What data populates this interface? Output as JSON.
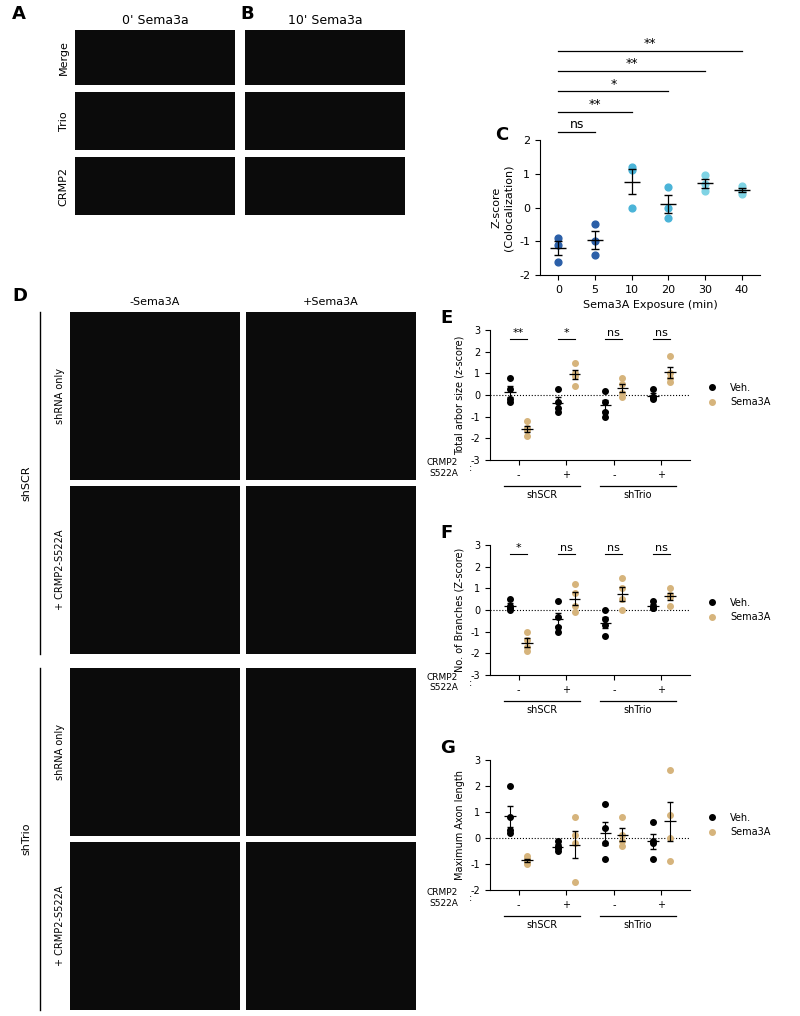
{
  "panel_labels": [
    "A",
    "B",
    "C",
    "D",
    "E",
    "F",
    "G"
  ],
  "micrographs": {
    "A": {
      "title": "0' Sema3a",
      "rows": [
        "Merge",
        "Trio",
        "CRMP2"
      ]
    },
    "B": {
      "title": "10' Sema3a"
    },
    "D": {
      "columns": [
        "-Sema3A",
        "+Sema3A"
      ],
      "groups": [
        {
          "name": "shSCR",
          "rows": [
            "shRNA only",
            "+ CRMP2-S522A"
          ]
        },
        {
          "name": "shTrio",
          "rows": [
            "shRNA only",
            "+ CRMP2-S522A"
          ]
        }
      ]
    }
  },
  "chart_data": [
    {
      "type": "scatter",
      "xlabel": "Sema3A Exposure (min)",
      "ylabel": "Z-score\n(Colocalization)",
      "categories": [
        "0",
        "5",
        "10",
        "20",
        "30",
        "40"
      ],
      "values": [
        [
          -0.9,
          -1.1,
          -1.6
        ],
        [
          -0.5,
          -1.0,
          -1.4
        ],
        [
          1.2,
          1.1,
          0.0
        ],
        [
          0.6,
          0.0,
          -0.3
        ],
        [
          0.95,
          0.7,
          0.5
        ],
        [
          0.65,
          0.5,
          0.4
        ]
      ],
      "mean": [
        -1.2,
        -0.97,
        0.77,
        0.1,
        0.72,
        0.52
      ],
      "sem": [
        0.21,
        0.26,
        0.38,
        0.26,
        0.13,
        0.07
      ],
      "colors": [
        "#2b5fa8",
        "#2b5fa8",
        "#4bb4d8",
        "#4bb4d8",
        "#7fd3e4",
        "#7fd3e4"
      ],
      "ylim": [
        -2,
        2
      ],
      "yticks": [
        -2,
        -1,
        0,
        1,
        2
      ],
      "significance": [
        {
          "from": "0",
          "to": "5",
          "label": "ns"
        },
        {
          "from": "0",
          "to": "10",
          "label": "**"
        },
        {
          "from": "0",
          "to": "20",
          "label": "*"
        },
        {
          "from": "0",
          "to": "30",
          "label": "**"
        },
        {
          "from": "0",
          "to": "40",
          "label": "**"
        }
      ]
    },
    {
      "type": "scatter",
      "ylabel": "Total arbor size (z-score)",
      "categories": [
        "-",
        "+",
        "-",
        "+"
      ],
      "groups": [
        "shSCR",
        "shTrio"
      ],
      "row_label": "CRMP2\nS522A",
      "row_separator": ":",
      "series": [
        {
          "name": "Veh.",
          "color": "#000000",
          "values": [
            [
              0.8,
              0.3,
              -0.2,
              -0.3
            ],
            [
              0.3,
              -0.3,
              -0.6,
              -0.8
            ],
            [
              0.2,
              -0.3,
              -0.8,
              -1.0
            ],
            [
              0.3,
              -0.1,
              -0.2,
              -0.1
            ]
          ],
          "mean": [
            0.15,
            -0.35,
            -0.48,
            -0.03
          ],
          "sem": [
            0.25,
            0.24,
            0.27,
            0.11
          ]
        },
        {
          "name": "Sema3A",
          "color": "#d6b47c",
          "values": [
            [
              -1.2,
              -1.5,
              -1.6,
              -1.9
            ],
            [
              1.5,
              1.0,
              0.9,
              0.4
            ],
            [
              0.8,
              0.5,
              0.1,
              -0.1
            ],
            [
              1.8,
              1.0,
              0.8,
              0.6
            ]
          ],
          "mean": [
            -1.55,
            0.95,
            0.33,
            1.05
          ],
          "sem": [
            0.14,
            0.22,
            0.2,
            0.26
          ]
        }
      ],
      "significance": [
        "**",
        "*",
        "ns",
        "ns"
      ],
      "reference_line": 0,
      "ylim": [
        -3,
        3
      ],
      "yticks": [
        -3,
        -2,
        -1,
        0,
        1,
        2,
        3
      ],
      "legend": "center left"
    },
    {
      "type": "scatter",
      "ylabel": "No. of Branches (Z-score)",
      "categories": [
        "-",
        "+",
        "-",
        "+"
      ],
      "groups": [
        "shSCR",
        "shTrio"
      ],
      "row_label": "CRMP2\nS522A",
      "row_separator": ":",
      "series": [
        {
          "name": "Veh.",
          "color": "#000000",
          "values": [
            [
              0.5,
              0.2,
              0.0,
              0.1
            ],
            [
              0.4,
              -0.3,
              -0.8,
              -1.0
            ],
            [
              0.0,
              -0.4,
              -0.7,
              -1.2
            ],
            [
              0.4,
              0.2,
              0.1,
              0.1
            ]
          ],
          "mean": [
            0.2,
            -0.43,
            -0.58,
            0.2
          ],
          "sem": [
            0.11,
            0.31,
            0.25,
            0.07
          ]
        },
        {
          "name": "Sema3A",
          "color": "#d6b47c",
          "values": [
            [
              -1.0,
              -1.4,
              -1.9,
              -1.7
            ],
            [
              1.2,
              0.8,
              0.2,
              -0.1
            ],
            [
              1.5,
              1.0,
              0.5,
              0.0
            ],
            [
              1.0,
              0.7,
              0.6,
              0.2
            ]
          ],
          "mean": [
            -1.5,
            0.53,
            0.75,
            0.63
          ],
          "sem": [
            0.2,
            0.29,
            0.32,
            0.17
          ]
        }
      ],
      "significance": [
        "*",
        "ns",
        "ns",
        "ns"
      ],
      "reference_line": 0,
      "ylim": [
        -3,
        3
      ],
      "yticks": [
        -3,
        -2,
        -1,
        0,
        1,
        2,
        3
      ],
      "legend": "center left"
    },
    {
      "type": "scatter",
      "ylabel": "Maximum Axon length",
      "categories": [
        "-",
        "+",
        "-",
        "+"
      ],
      "groups": [
        "shSCR",
        "shTrio"
      ],
      "row_label": "CRMP2\nS522A",
      "row_separator": ":",
      "series": [
        {
          "name": "Veh.",
          "color": "#000000",
          "values": [
            [
              2.0,
              0.8,
              0.3,
              0.2
            ],
            [
              -0.1,
              -0.3,
              -0.4,
              -0.5
            ],
            [
              1.3,
              0.4,
              -0.2,
              -0.8
            ],
            [
              0.6,
              -0.1,
              -0.2,
              -0.8
            ]
          ],
          "mean": [
            0.83,
            -0.33,
            0.18,
            -0.13
          ],
          "sem": [
            0.41,
            0.09,
            0.45,
            0.29
          ]
        },
        {
          "name": "Sema3A",
          "color": "#d6b47c",
          "values": [
            [
              -0.7,
              -0.8,
              -0.9,
              -1.0
            ],
            [
              0.8,
              0.1,
              -0.2,
              -1.7
            ],
            [
              0.8,
              0.1,
              -0.1,
              -0.3
            ],
            [
              2.6,
              0.9,
              0.0,
              -0.9
            ]
          ],
          "mean": [
            -0.85,
            -0.25,
            0.13,
            0.65
          ],
          "sem": [
            0.06,
            0.53,
            0.24,
            0.75
          ]
        }
      ],
      "reference_line": 0,
      "ylim": [
        -2,
        3
      ],
      "yticks": [
        -2,
        -1,
        0,
        1,
        2,
        3
      ],
      "legend": "center left"
    }
  ]
}
